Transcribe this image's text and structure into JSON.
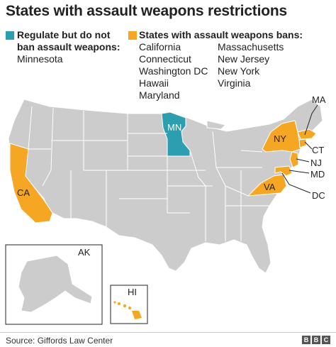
{
  "title": "States with assault weapons restrictions",
  "legend": {
    "regulate": {
      "label_line1": "Regulate but do not",
      "label_line2": "ban assault weapons:",
      "color": "#2d9db0",
      "states": [
        "Minnesota"
      ]
    },
    "ban": {
      "label": "States with assault weapons bans:",
      "color": "#f5a623",
      "states_col1": [
        "California",
        "Connecticut",
        "Washington DC",
        "Hawaii",
        "Maryland"
      ],
      "states_col2": [
        "Massachusetts",
        "New Jersey",
        "New York",
        "Virginia"
      ]
    }
  },
  "map_labels": {
    "MN": "MN",
    "NY": "NY",
    "CA": "CA",
    "VA": "VA",
    "MA": "MA",
    "CT": "CT",
    "NJ": "NJ",
    "MD": "MD",
    "DC": "DC",
    "AK": "AK",
    "HI": "HI"
  },
  "colors": {
    "base": "#cccccc",
    "border": "#ffffff",
    "regulate": "#2d9db0",
    "ban": "#f5a623"
  },
  "footer": {
    "source": "Source: Giffords Law Center",
    "brand": [
      "B",
      "B",
      "C"
    ]
  }
}
